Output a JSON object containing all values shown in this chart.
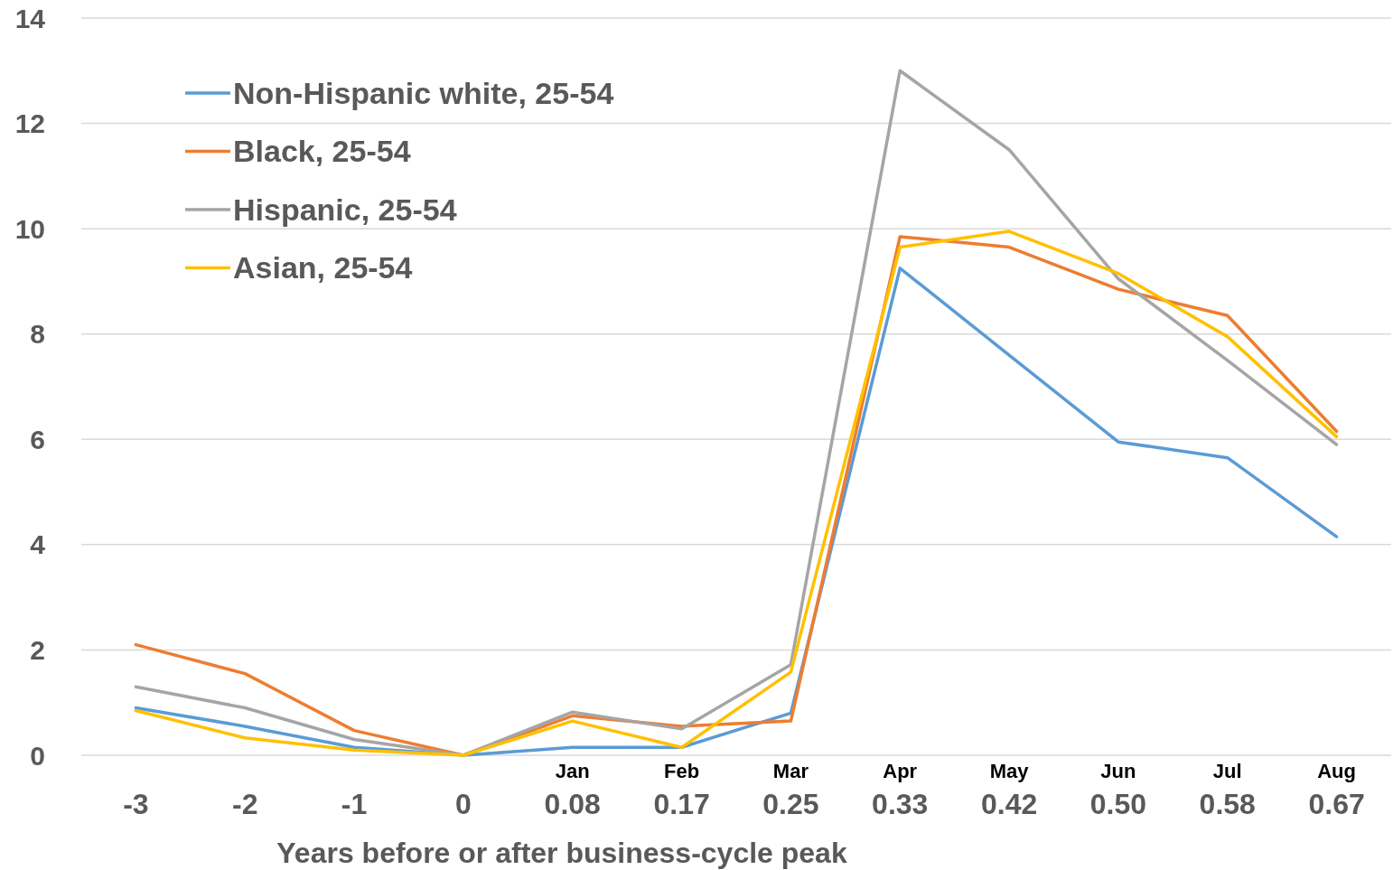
{
  "chart_data": {
    "type": "line",
    "xlabel": "Years before or after business-cycle peak",
    "categories": [
      "-3",
      "-2",
      "-1",
      "0",
      "Jan\n0.08",
      "Feb\n0.17",
      "Mar\n0.25",
      "Apr\n0.33",
      "May\n0.42",
      "Jun\n0.50",
      "Jul\n0.58",
      "Aug\n0.67"
    ],
    "series": [
      {
        "name": "Non-Hispanic white, 25-54",
        "color": "#5b9bd5",
        "values": [
          0.9,
          0.55,
          0.15,
          0,
          0.15,
          0.15,
          0.8,
          9.25,
          7.6,
          5.95,
          5.65,
          4.15
        ]
      },
      {
        "name": "Black, 25-54",
        "color": "#ed7d31",
        "values": [
          2.1,
          1.55,
          0.47,
          0,
          0.75,
          0.55,
          0.65,
          9.85,
          9.65,
          8.85,
          8.35,
          6.15
        ]
      },
      {
        "name": "Hispanic, 25-54",
        "color": "#a5a5a5",
        "values": [
          1.3,
          0.9,
          0.3,
          0,
          0.82,
          0.5,
          1.72,
          13.0,
          11.5,
          9.05,
          7.5,
          5.9
        ]
      },
      {
        "name": "Asian, 25-54",
        "color": "#ffc000",
        "values": [
          0.85,
          0.33,
          0.1,
          0,
          0.65,
          0.15,
          1.58,
          9.65,
          9.95,
          9.15,
          7.95,
          6.05
        ]
      }
    ],
    "ylim": [
      0,
      14
    ],
    "yticks": [
      0,
      2,
      4,
      6,
      8,
      10,
      12,
      14
    ],
    "grid": "y",
    "legend": "top left",
    "marker": "none",
    "line_style": "solid"
  }
}
